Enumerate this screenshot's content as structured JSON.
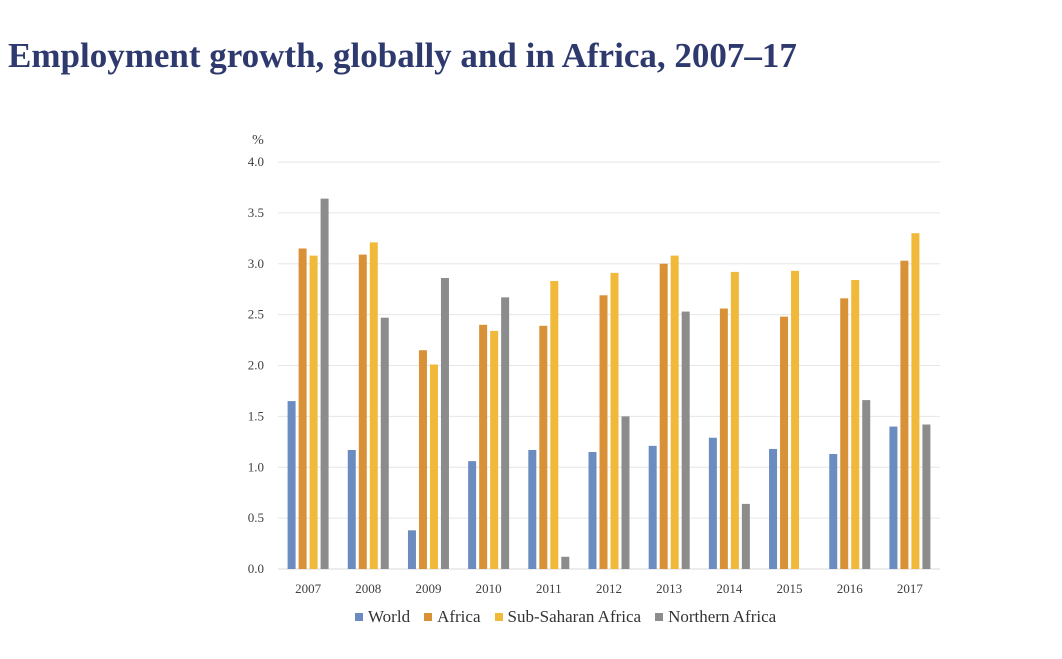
{
  "title": "Employment growth, globally and in Africa, 2007–17",
  "chart_data": {
    "type": "bar",
    "title": "Employment growth, globally and in Africa, 2007–17",
    "xlabel": "",
    "ylabel": "%",
    "ylim": [
      0,
      4.0
    ],
    "yticks": [
      "0.0",
      "0.5",
      "1.0",
      "1.5",
      "2.0",
      "2.5",
      "3.0",
      "3.5",
      "4.0"
    ],
    "ytick_values": [
      0,
      0.5,
      1.0,
      1.5,
      2.0,
      2.5,
      3.0,
      3.5,
      4.0
    ],
    "grid": true,
    "legend_position": "bottom",
    "categories": [
      "2007",
      "2008",
      "2009",
      "2010",
      "2011",
      "2012",
      "2013",
      "2014",
      "2015",
      "2016",
      "2017"
    ],
    "series": [
      {
        "name": "World",
        "color": "#6a8cc0",
        "values": [
          1.65,
          1.17,
          0.38,
          1.06,
          1.17,
          1.15,
          1.21,
          1.29,
          1.18,
          1.13,
          1.4
        ]
      },
      {
        "name": "Africa",
        "color": "#d99137",
        "values": [
          3.15,
          3.09,
          2.15,
          2.4,
          2.39,
          2.69,
          3.0,
          2.56,
          2.48,
          2.66,
          3.03
        ]
      },
      {
        "name": "Sub-Saharan Africa",
        "color": "#f0b93a",
        "values": [
          3.08,
          3.21,
          2.01,
          2.34,
          2.83,
          2.91,
          3.08,
          2.92,
          2.93,
          2.84,
          3.3
        ]
      },
      {
        "name": "Northern Africa",
        "color": "#8c8c8c",
        "values": [
          3.64,
          2.47,
          2.86,
          2.67,
          0.12,
          1.5,
          2.53,
          0.64,
          null,
          1.66,
          1.42
        ]
      }
    ]
  },
  "legend": [
    {
      "label": "World",
      "color": "#6a8cc0"
    },
    {
      "label": "Africa",
      "color": "#d99137"
    },
    {
      "label": "Sub-Saharan Africa",
      "color": "#f0b93a"
    },
    {
      "label": "Northern Africa",
      "color": "#8c8c8c"
    }
  ]
}
